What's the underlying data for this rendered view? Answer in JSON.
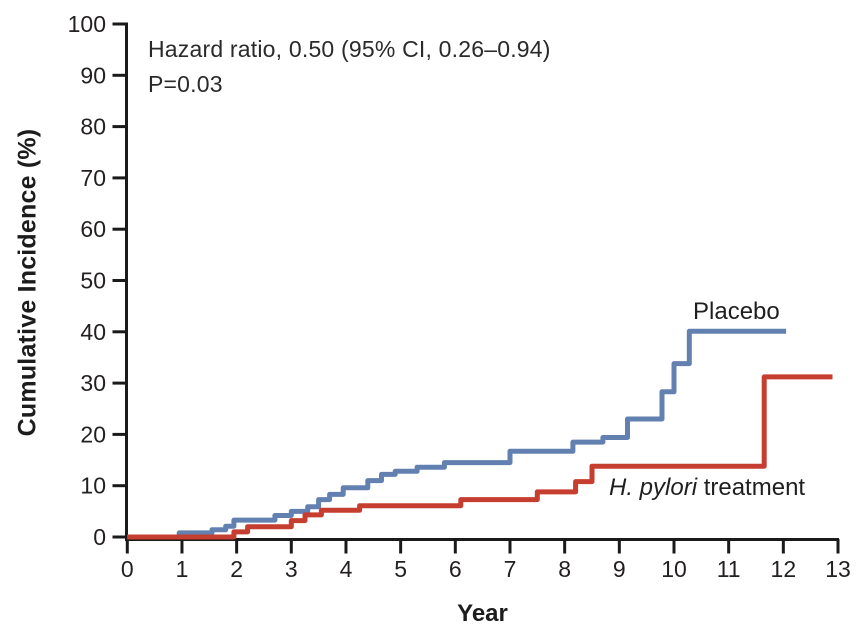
{
  "figure": {
    "annotation_line1": "Hazard ratio, 0.50 (95% CI, 0.26–0.94)",
    "annotation_line2": "P=0.03",
    "y_axis_title": "Cumulative Incidence (%)",
    "x_axis_title": "Year"
  },
  "series_labels": {
    "placebo": "Placebo",
    "hp_italic": "H. pylori",
    "hp_rest": " treatment"
  },
  "chart_data": {
    "type": "line",
    "subtype": "step",
    "title": "",
    "xlabel": "Year",
    "ylabel": "Cumulative Incidence (%)",
    "xlim": [
      0,
      13
    ],
    "ylim": [
      0,
      100
    ],
    "x_ticks": [
      0,
      1,
      2,
      3,
      4,
      5,
      6,
      7,
      8,
      9,
      10,
      11,
      12,
      13
    ],
    "y_ticks": [
      0,
      10,
      20,
      30,
      40,
      50,
      60,
      70,
      80,
      90,
      100
    ],
    "grid": false,
    "legend_position": "inline-labels",
    "annotation": [
      "Hazard ratio, 0.50 (95% CI, 0.26–0.94)",
      "P=0.03"
    ],
    "axis_color": "#1a1a1a",
    "series": [
      {
        "name": "Placebo",
        "color": "#6381b0",
        "end_x": 12.05,
        "points": [
          [
            0,
            0
          ],
          [
            0.95,
            0.8
          ],
          [
            1.55,
            1.4
          ],
          [
            1.8,
            2.1
          ],
          [
            1.95,
            3.3
          ],
          [
            2.7,
            4.2
          ],
          [
            3.0,
            5.0
          ],
          [
            3.3,
            5.9
          ],
          [
            3.5,
            7.3
          ],
          [
            3.7,
            8.3
          ],
          [
            3.95,
            9.6
          ],
          [
            4.4,
            11.0
          ],
          [
            4.65,
            12.2
          ],
          [
            4.9,
            12.8
          ],
          [
            5.3,
            13.6
          ],
          [
            5.8,
            14.5
          ],
          [
            7.0,
            16.7
          ],
          [
            8.15,
            18.5
          ],
          [
            8.7,
            19.4
          ],
          [
            9.15,
            23.0
          ],
          [
            9.78,
            28.3
          ],
          [
            10.0,
            33.8
          ],
          [
            10.28,
            40.1
          ]
        ]
      },
      {
        "name": "H. pylori treatment",
        "color": "#c63e30",
        "end_x": 12.9,
        "points": [
          [
            0,
            0
          ],
          [
            1.95,
            1.0
          ],
          [
            2.2,
            2.0
          ],
          [
            3.0,
            3.2
          ],
          [
            3.25,
            4.3
          ],
          [
            3.55,
            5.2
          ],
          [
            4.25,
            6.1
          ],
          [
            6.1,
            7.3
          ],
          [
            7.5,
            8.8
          ],
          [
            8.2,
            10.8
          ],
          [
            8.5,
            13.8
          ],
          [
            11.65,
            31.2
          ]
        ]
      }
    ]
  }
}
